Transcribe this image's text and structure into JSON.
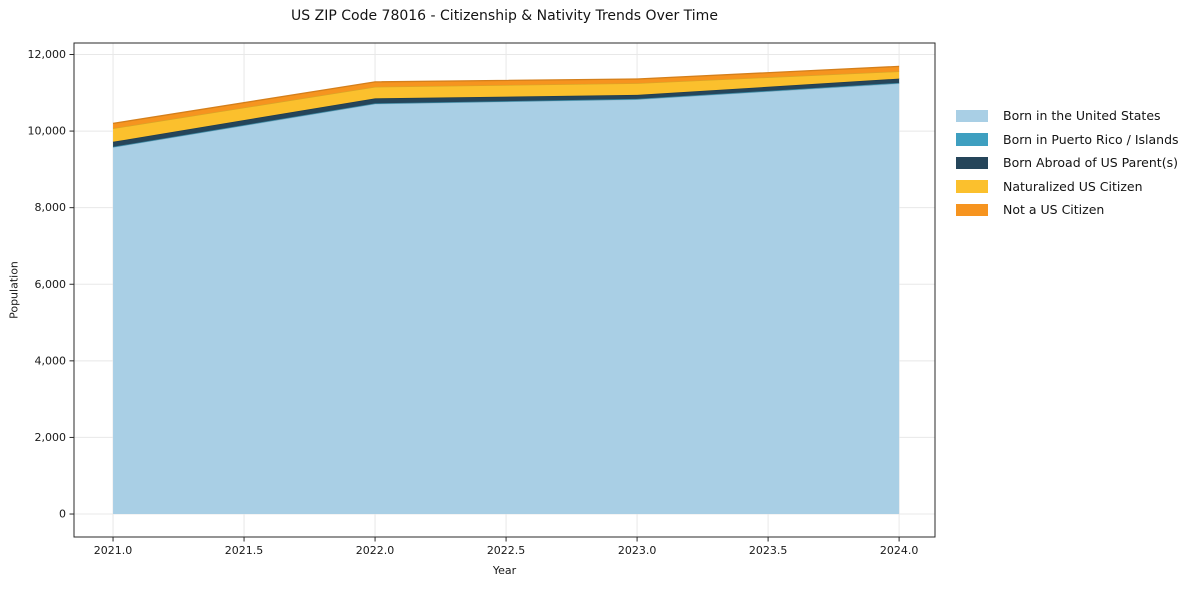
{
  "chart_data": {
    "type": "area",
    "stacked": true,
    "title": "US ZIP Code 78016 - Citizenship & Nativity Trends Over Time",
    "xlabel": "Year",
    "ylabel": "Population",
    "x": [
      2021,
      2022,
      2023,
      2024
    ],
    "series": [
      {
        "name": "Born in the United States",
        "color": "#A9CFE5",
        "values": [
          9580,
          10715,
          10830,
          11245
        ]
      },
      {
        "name": "Born in Puerto Rico / Islands",
        "color": "#3E9FC0",
        "values": [
          10,
          10,
          10,
          15
        ]
      },
      {
        "name": "Born Abroad of US Parent(s)",
        "color": "#25455A",
        "values": [
          130,
          130,
          105,
          110
        ]
      },
      {
        "name": "Naturalized US Citizen",
        "color": "#FBC02D",
        "values": [
          350,
          300,
          305,
          190
        ]
      },
      {
        "name": "Not a US Citizen",
        "color": "#F6941F",
        "values": [
          130,
          130,
          110,
          130
        ]
      }
    ],
    "xlim": [
      2020.851,
      2024.137
    ],
    "ylim": [
      -600,
      12300
    ],
    "x_ticks": [
      {
        "value": 2021.0,
        "label": "2021.0"
      },
      {
        "value": 2021.5,
        "label": "2021.5"
      },
      {
        "value": 2022.0,
        "label": "2022.0"
      },
      {
        "value": 2022.5,
        "label": "2022.5"
      },
      {
        "value": 2023.0,
        "label": "2023.0"
      },
      {
        "value": 2023.5,
        "label": "2023.5"
      },
      {
        "value": 2024.0,
        "label": "2024.0"
      }
    ],
    "y_ticks": [
      {
        "value": 0,
        "label": "0"
      },
      {
        "value": 2000,
        "label": "2,000"
      },
      {
        "value": 4000,
        "label": "4,000"
      },
      {
        "value": 6000,
        "label": "6,000"
      },
      {
        "value": 8000,
        "label": "8,000"
      },
      {
        "value": 10000,
        "label": "10,000"
      },
      {
        "value": 12000,
        "label": "12,000"
      }
    ],
    "grid": true,
    "legend_position": "right-outside"
  },
  "colors": {
    "grid": "#e8e8e8",
    "spine": "#2a2a2a",
    "tick": "#2a2a2a",
    "tick_text": "#191919"
  }
}
